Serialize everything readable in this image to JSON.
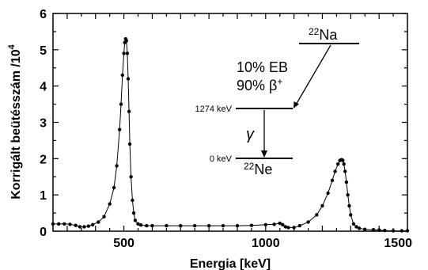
{
  "chart_data": {
    "type": "scatter",
    "title": "",
    "xlabel": "Energia [keV]",
    "ylabel": "Korrigált beütésszám /10",
    "ylabel_exponent": "4",
    "xlim": [
      250,
      1500
    ],
    "ylim": [
      0,
      6
    ],
    "x_ticks": [
      500,
      1000,
      1500
    ],
    "y_ticks": [
      0,
      1,
      2,
      3,
      4,
      5,
      6
    ],
    "grid": false,
    "series": [
      {
        "name": "",
        "style": "points-with-line",
        "x": [
          250,
          270,
          290,
          310,
          330,
          345,
          360,
          375,
          390,
          410,
          430,
          450,
          465,
          475,
          485,
          490,
          495,
          500,
          503,
          506,
          509,
          512,
          515,
          518,
          521,
          525,
          530,
          535,
          540,
          550,
          560,
          580,
          600,
          650,
          700,
          750,
          800,
          850,
          900,
          950,
          1000,
          1030,
          1050,
          1060,
          1070,
          1080,
          1100,
          1120,
          1150,
          1180,
          1200,
          1220,
          1235,
          1245,
          1255,
          1262,
          1268,
          1272,
          1276,
          1280,
          1285,
          1290,
          1295,
          1300,
          1310,
          1320,
          1330,
          1350,
          1380,
          1400,
          1420,
          1450,
          1480,
          1500
        ],
        "y": [
          0.2,
          0.2,
          0.2,
          0.19,
          0.16,
          0.12,
          0.12,
          0.14,
          0.18,
          0.25,
          0.4,
          0.75,
          1.2,
          1.8,
          2.8,
          3.5,
          4.3,
          4.9,
          5.2,
          5.3,
          5.25,
          4.9,
          4.2,
          3.3,
          2.4,
          1.5,
          0.85,
          0.5,
          0.3,
          0.2,
          0.17,
          0.15,
          0.15,
          0.15,
          0.15,
          0.15,
          0.15,
          0.15,
          0.15,
          0.16,
          0.18,
          0.19,
          0.22,
          0.18,
          0.12,
          0.1,
          0.1,
          0.15,
          0.25,
          0.45,
          0.7,
          1.05,
          1.4,
          1.65,
          1.85,
          1.95,
          1.97,
          1.95,
          1.85,
          1.65,
          1.35,
          1.0,
          0.7,
          0.45,
          0.2,
          0.12,
          0.08,
          0.05,
          0.04,
          0.03,
          0.02,
          0.01,
          0.01,
          0.01
        ]
      }
    ]
  },
  "decay_scheme": {
    "parent": "Na",
    "parent_mass": "22",
    "daughter": "Ne",
    "daughter_mass": "22",
    "branch_ec": "10% EB",
    "branch_beta_prefix": "90% β",
    "branch_beta_sign": "+",
    "level_excited": "1274 keV",
    "level_ground": "0 keV",
    "gamma": "γ"
  }
}
